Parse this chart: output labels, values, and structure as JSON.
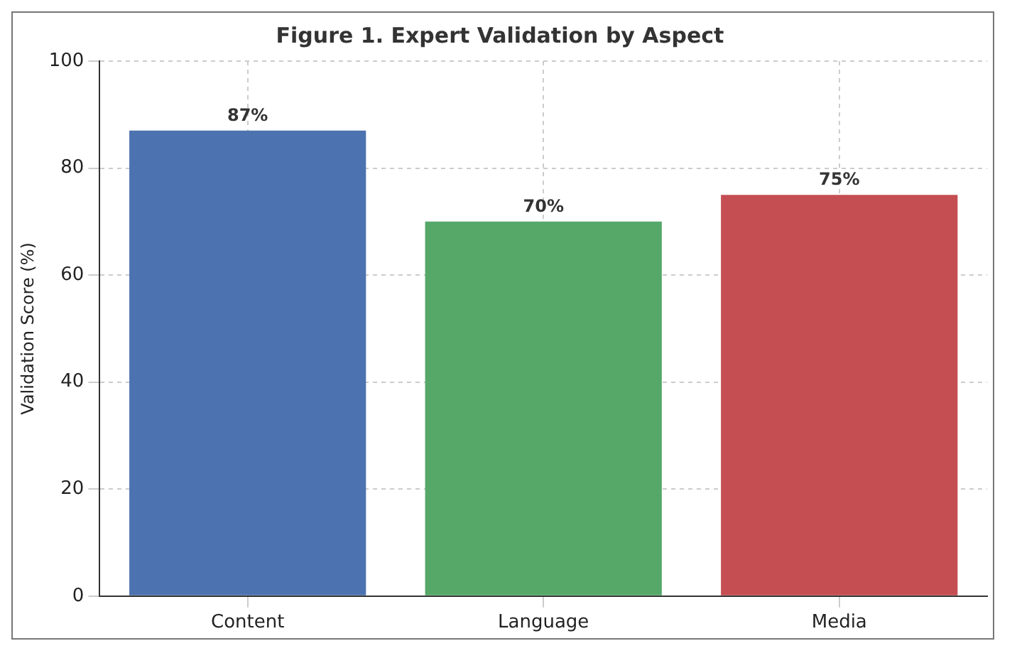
{
  "chart_data": {
    "type": "bar",
    "title": "Figure 1. Expert Validation by Aspect",
    "ylabel": "Validation Score (%)",
    "categories": [
      "Content",
      "Language",
      "Media"
    ],
    "values": [
      87,
      70,
      75
    ],
    "colors": [
      "#4c72b0",
      "#55a868",
      "#c44e52"
    ],
    "value_labels": [
      "87%",
      "70%",
      "75%"
    ],
    "ylim": [
      0,
      100
    ],
    "yticks": [
      0,
      20,
      40,
      60,
      80,
      100
    ],
    "grid": true
  }
}
